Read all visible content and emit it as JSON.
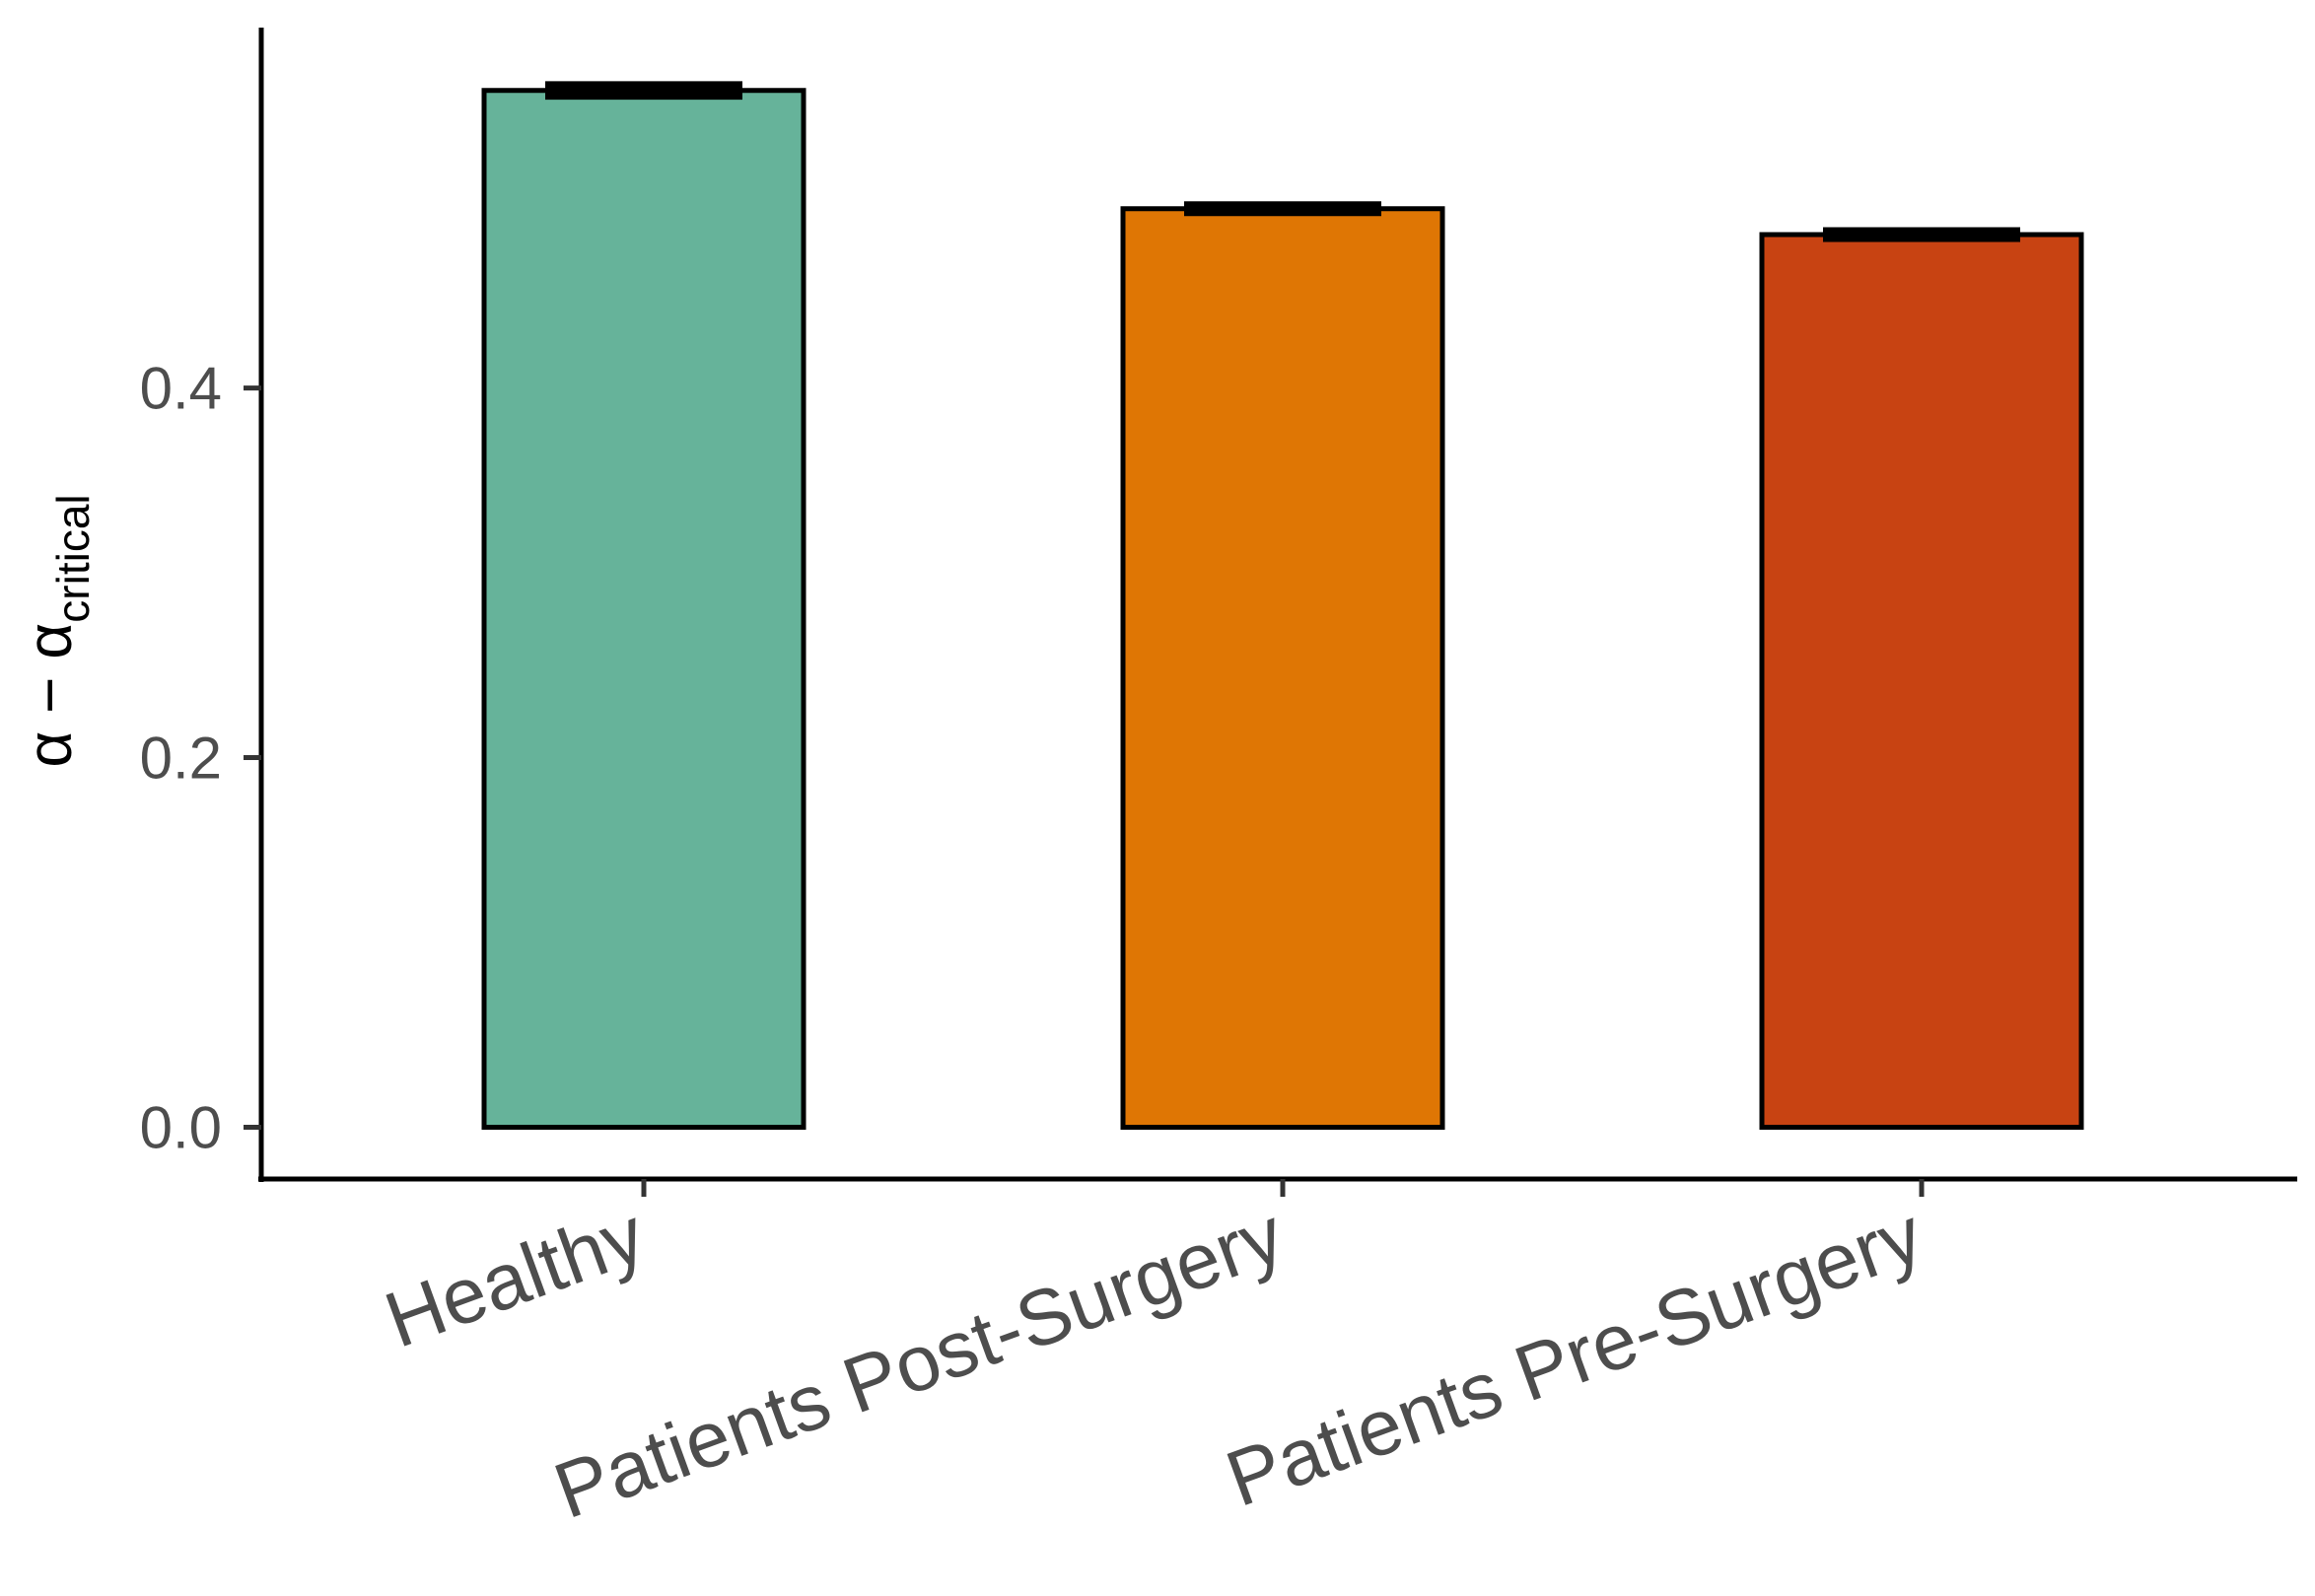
{
  "chart_data": {
    "type": "bar",
    "title": "",
    "xlabel": "",
    "ylabel": {
      "main": "α − α",
      "subscript": "critical"
    },
    "categories": [
      "Healthy",
      "Patients Post-Surgery",
      "Patients Pre-Surgery"
    ],
    "values": [
      0.561,
      0.497,
      0.483
    ],
    "error": [
      0.005,
      0.004,
      0.004
    ],
    "colors": [
      "#66b39a",
      "#df7604",
      "#c84312"
    ],
    "ylim": [
      -0.028,
      0.595
    ],
    "yticks": [
      0.0,
      0.2,
      0.4
    ],
    "ytick_labels": [
      "0.0",
      "0.2",
      "0.4"
    ],
    "grid": false,
    "legend": "none"
  }
}
